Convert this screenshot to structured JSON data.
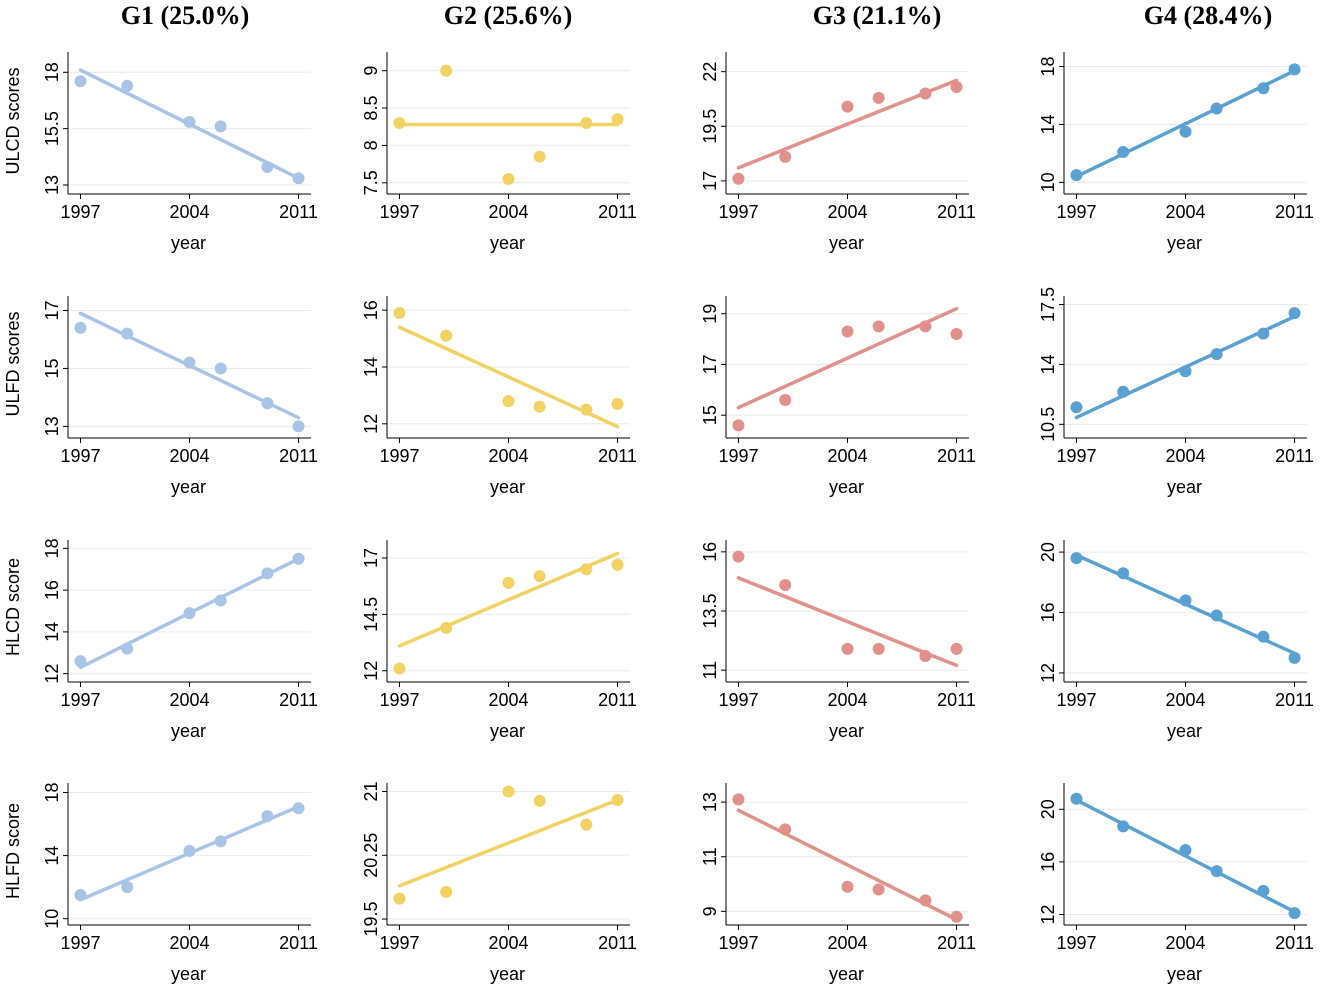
{
  "figure": {
    "column_titles": [
      "G1 (25.0%)",
      "G2 (25.6%)",
      "G3 (21.1%)",
      "G4 (28.4%)"
    ],
    "row_ylabels": [
      "ULCD scores",
      "ULFD scores",
      "HLCD score",
      "HLFD score"
    ]
  },
  "chart_data": [
    {
      "type": "scatter",
      "panel": "ULCD-G1",
      "group": "G1",
      "ylabel": "ULCD scores",
      "xlabel": "year",
      "color": "#a9c4e6",
      "x": [
        1997,
        2000,
        2004,
        2006,
        2009,
        2011
      ],
      "values": [
        17.6,
        17.4,
        15.8,
        15.6,
        13.8,
        13.3
      ],
      "fit": [
        [
          1997,
          18.1
        ],
        [
          2011,
          13.3
        ]
      ],
      "xlim": [
        1996.2,
        2011.8
      ],
      "ylim": [
        12.6,
        18.9
      ],
      "xticks": [
        1997,
        2004,
        2011
      ],
      "xtick_labels": [
        "1997",
        "2004",
        "2011"
      ],
      "yticks": [
        13,
        15.5,
        18
      ],
      "ytick_labels": [
        "13",
        "15.5",
        "18"
      ],
      "grid": true
    },
    {
      "type": "scatter",
      "panel": "ULCD-G2",
      "group": "G2",
      "ylabel": "",
      "xlabel": "year",
      "color": "#f2d262",
      "x": [
        1997,
        2000,
        2004,
        2006,
        2009,
        2011
      ],
      "values": [
        8.3,
        9.0,
        7.55,
        7.85,
        8.3,
        8.35
      ],
      "fit": [
        [
          1997,
          8.28
        ],
        [
          2011,
          8.28
        ]
      ],
      "xlim": [
        1996.2,
        2011.8
      ],
      "ylim": [
        7.35,
        9.25
      ],
      "xticks": [
        1997,
        2004,
        2011
      ],
      "xtick_labels": [
        "1997",
        "2004",
        "2011"
      ],
      "yticks": [
        7.5,
        8,
        8.5,
        9
      ],
      "ytick_labels": [
        "7.5",
        "8",
        "8.5",
        "9"
      ],
      "grid": true
    },
    {
      "type": "scatter",
      "panel": "ULCD-G3",
      "group": "G3",
      "ylabel": "",
      "xlabel": "year",
      "color": "#e1908c",
      "x": [
        1997,
        2000,
        2004,
        2006,
        2009,
        2011
      ],
      "values": [
        17.1,
        18.1,
        20.4,
        20.8,
        21.0,
        21.3
      ],
      "fit": [
        [
          1997,
          17.6
        ],
        [
          2011,
          21.6
        ]
      ],
      "xlim": [
        1996.2,
        2011.8
      ],
      "ylim": [
        16.4,
        22.9
      ],
      "xticks": [
        1997,
        2004,
        2011
      ],
      "xtick_labels": [
        "1997",
        "2004",
        "2011"
      ],
      "yticks": [
        17,
        19.5,
        22
      ],
      "ytick_labels": [
        "17",
        "19.5",
        "22"
      ],
      "grid": true
    },
    {
      "type": "scatter",
      "panel": "ULCD-G4",
      "group": "G4",
      "ylabel": "",
      "xlabel": "year",
      "color": "#5aa1d3",
      "x": [
        1997,
        2000,
        2004,
        2006,
        2009,
        2011
      ],
      "values": [
        10.5,
        12.1,
        13.5,
        15.1,
        16.5,
        17.8
      ],
      "fit": [
        [
          1997,
          10.4
        ],
        [
          2011,
          17.7
        ]
      ],
      "xlim": [
        1996.2,
        2011.8
      ],
      "ylim": [
        9.2,
        19.0
      ],
      "xticks": [
        1997,
        2004,
        2011
      ],
      "xtick_labels": [
        "1997",
        "2004",
        "2011"
      ],
      "yticks": [
        10,
        14,
        18
      ],
      "ytick_labels": [
        "10",
        "14",
        "18"
      ],
      "grid": true
    },
    {
      "type": "scatter",
      "panel": "ULFD-G1",
      "group": "G1",
      "ylabel": "ULFD scores",
      "xlabel": "year",
      "color": "#a9c4e6",
      "x": [
        1997,
        2000,
        2004,
        2006,
        2009,
        2011
      ],
      "values": [
        16.4,
        16.2,
        15.2,
        15.0,
        13.8,
        13.0
      ],
      "fit": [
        [
          1997,
          16.9
        ],
        [
          2011,
          13.3
        ]
      ],
      "xlim": [
        1996.2,
        2011.8
      ],
      "ylim": [
        12.6,
        17.5
      ],
      "xticks": [
        1997,
        2004,
        2011
      ],
      "xtick_labels": [
        "1997",
        "2004",
        "2011"
      ],
      "yticks": [
        13,
        15,
        17
      ],
      "ytick_labels": [
        "13",
        "15",
        "17"
      ],
      "grid": true
    },
    {
      "type": "scatter",
      "panel": "ULFD-G2",
      "group": "G2",
      "ylabel": "",
      "xlabel": "year",
      "color": "#f2d262",
      "x": [
        1997,
        2000,
        2004,
        2006,
        2009,
        2011
      ],
      "values": [
        15.9,
        15.1,
        12.8,
        12.6,
        12.5,
        12.7
      ],
      "fit": [
        [
          1997,
          15.4
        ],
        [
          2011,
          11.9
        ]
      ],
      "xlim": [
        1996.2,
        2011.8
      ],
      "ylim": [
        11.5,
        16.5
      ],
      "xticks": [
        1997,
        2004,
        2011
      ],
      "xtick_labels": [
        "1997",
        "2004",
        "2011"
      ],
      "yticks": [
        12,
        14,
        16
      ],
      "ytick_labels": [
        "12",
        "14",
        "16"
      ],
      "grid": true
    },
    {
      "type": "scatter",
      "panel": "ULFD-G3",
      "group": "G3",
      "ylabel": "",
      "xlabel": "year",
      "color": "#e1908c",
      "x": [
        1997,
        2000,
        2004,
        2006,
        2009,
        2011
      ],
      "values": [
        14.6,
        15.6,
        18.3,
        18.5,
        18.5,
        18.2
      ],
      "fit": [
        [
          1997,
          15.3
        ],
        [
          2011,
          19.2
        ]
      ],
      "xlim": [
        1996.2,
        2011.8
      ],
      "ylim": [
        14.1,
        19.7
      ],
      "xticks": [
        1997,
        2004,
        2011
      ],
      "xtick_labels": [
        "1997",
        "2004",
        "2011"
      ],
      "yticks": [
        15,
        17,
        19
      ],
      "ytick_labels": [
        "15",
        "17",
        "19"
      ],
      "grid": true
    },
    {
      "type": "scatter",
      "panel": "ULFD-G4",
      "group": "G4",
      "ylabel": "",
      "xlabel": "year",
      "color": "#5aa1d3",
      "x": [
        1997,
        2000,
        2004,
        2006,
        2009,
        2011
      ],
      "values": [
        11.5,
        12.4,
        13.6,
        14.6,
        15.8,
        17.0
      ],
      "fit": [
        [
          1997,
          10.9
        ],
        [
          2011,
          16.8
        ]
      ],
      "xlim": [
        1996.2,
        2011.8
      ],
      "ylim": [
        9.7,
        18.0
      ],
      "xticks": [
        1997,
        2004,
        2011
      ],
      "xtick_labels": [
        "1997",
        "2004",
        "2011"
      ],
      "yticks": [
        10.5,
        14,
        17.5
      ],
      "ytick_labels": [
        "10.5",
        "14",
        "17.5"
      ],
      "grid": true
    },
    {
      "type": "scatter",
      "panel": "HLCD-G1",
      "group": "G1",
      "ylabel": "HLCD score",
      "xlabel": "year",
      "color": "#a9c4e6",
      "x": [
        1997,
        2000,
        2004,
        2006,
        2009,
        2011
      ],
      "values": [
        12.6,
        13.2,
        14.9,
        15.5,
        16.8,
        17.5
      ],
      "fit": [
        [
          1997,
          12.3
        ],
        [
          2011,
          17.5
        ]
      ],
      "xlim": [
        1996.2,
        2011.8
      ],
      "ylim": [
        11.6,
        18.4
      ],
      "xticks": [
        1997,
        2004,
        2011
      ],
      "xtick_labels": [
        "1997",
        "2004",
        "2011"
      ],
      "yticks": [
        12,
        14,
        16,
        18
      ],
      "ytick_labels": [
        "12",
        "14",
        "16",
        "18"
      ],
      "grid": true
    },
    {
      "type": "scatter",
      "panel": "HLCD-G2",
      "group": "G2",
      "ylabel": "",
      "xlabel": "year",
      "color": "#f2d262",
      "x": [
        1997,
        2000,
        2004,
        2006,
        2009,
        2011
      ],
      "values": [
        12.1,
        13.9,
        15.9,
        16.2,
        16.5,
        16.7
      ],
      "fit": [
        [
          1997,
          13.1
        ],
        [
          2011,
          17.2
        ]
      ],
      "xlim": [
        1996.2,
        2011.8
      ],
      "ylim": [
        11.5,
        17.8
      ],
      "xticks": [
        1997,
        2004,
        2011
      ],
      "xtick_labels": [
        "1997",
        "2004",
        "2011"
      ],
      "yticks": [
        12,
        14.5,
        17
      ],
      "ytick_labels": [
        "12",
        "14.5",
        "17"
      ],
      "grid": true
    },
    {
      "type": "scatter",
      "panel": "HLCD-G3",
      "group": "G3",
      "ylabel": "",
      "xlabel": "year",
      "color": "#e1908c",
      "x": [
        1997,
        2000,
        2004,
        2006,
        2009,
        2011
      ],
      "values": [
        15.8,
        14.6,
        11.9,
        11.9,
        11.6,
        11.9
      ],
      "fit": [
        [
          1997,
          14.9
        ],
        [
          2011,
          11.2
        ]
      ],
      "xlim": [
        1996.2,
        2011.8
      ],
      "ylim": [
        10.5,
        16.5
      ],
      "xticks": [
        1997,
        2004,
        2011
      ],
      "xtick_labels": [
        "1997",
        "2004",
        "2011"
      ],
      "yticks": [
        11,
        13.5,
        16
      ],
      "ytick_labels": [
        "11",
        "13.5",
        "16"
      ],
      "grid": true
    },
    {
      "type": "scatter",
      "panel": "HLCD-G4",
      "group": "G4",
      "ylabel": "",
      "xlabel": "year",
      "color": "#5aa1d3",
      "x": [
        1997,
        2000,
        2004,
        2006,
        2009,
        2011
      ],
      "values": [
        19.6,
        18.6,
        16.8,
        15.8,
        14.4,
        13.0
      ],
      "fit": [
        [
          1997,
          19.8
        ],
        [
          2011,
          13.3
        ]
      ],
      "xlim": [
        1996.2,
        2011.8
      ],
      "ylim": [
        11.4,
        20.8
      ],
      "xticks": [
        1997,
        2004,
        2011
      ],
      "xtick_labels": [
        "1997",
        "2004",
        "2011"
      ],
      "yticks": [
        12,
        16,
        20
      ],
      "ytick_labels": [
        "12",
        "16",
        "20"
      ],
      "grid": true
    },
    {
      "type": "scatter",
      "panel": "HLFD-G1",
      "group": "G1",
      "ylabel": "HLFD score",
      "xlabel": "year",
      "color": "#a9c4e6",
      "x": [
        1997,
        2000,
        2004,
        2006,
        2009,
        2011
      ],
      "values": [
        11.5,
        12.0,
        14.3,
        14.9,
        16.5,
        17.0
      ],
      "fit": [
        [
          1997,
          11.2
        ],
        [
          2011,
          17.1
        ]
      ],
      "xlim": [
        1996.2,
        2011.8
      ],
      "ylim": [
        9.6,
        18.6
      ],
      "xticks": [
        1997,
        2004,
        2011
      ],
      "xtick_labels": [
        "1997",
        "2004",
        "2011"
      ],
      "yticks": [
        10,
        14,
        18
      ],
      "ytick_labels": [
        "10",
        "14",
        "18"
      ],
      "grid": true
    },
    {
      "type": "scatter",
      "panel": "HLFD-G2",
      "group": "G2",
      "ylabel": "",
      "xlabel": "year",
      "color": "#f2d262",
      "x": [
        1997,
        2000,
        2004,
        2006,
        2009,
        2011
      ],
      "values": [
        19.74,
        19.82,
        21.0,
        20.89,
        20.61,
        20.9
      ],
      "fit": [
        [
          1997,
          19.89
        ],
        [
          2011,
          20.9
        ]
      ],
      "xlim": [
        1996.2,
        2011.8
      ],
      "ylim": [
        19.43,
        21.1
      ],
      "xticks": [
        1997,
        2004,
        2011
      ],
      "xtick_labels": [
        "1997",
        "2004",
        "2011"
      ],
      "yticks": [
        19.5,
        20.25,
        21
      ],
      "ytick_labels": [
        "19.5",
        "20.25",
        "21"
      ],
      "grid": true
    },
    {
      "type": "scatter",
      "panel": "HLFD-G3",
      "group": "G3",
      "ylabel": "",
      "xlabel": "year",
      "color": "#e1908c",
      "x": [
        1997,
        2000,
        2004,
        2006,
        2009,
        2011
      ],
      "values": [
        13.1,
        12.0,
        9.9,
        9.8,
        9.4,
        8.8
      ],
      "fit": [
        [
          1997,
          12.7
        ],
        [
          2011,
          8.7
        ]
      ],
      "xlim": [
        1996.2,
        2011.8
      ],
      "ylim": [
        8.5,
        13.7
      ],
      "xticks": [
        1997,
        2004,
        2011
      ],
      "xtick_labels": [
        "1997",
        "2004",
        "2011"
      ],
      "yticks": [
        9,
        11,
        13
      ],
      "ytick_labels": [
        "9",
        "11",
        "13"
      ],
      "grid": true
    },
    {
      "type": "scatter",
      "panel": "HLFD-G4",
      "group": "G4",
      "ylabel": "",
      "xlabel": "year",
      "color": "#5aa1d3",
      "x": [
        1997,
        2000,
        2004,
        2006,
        2009,
        2011
      ],
      "values": [
        20.8,
        18.7,
        16.9,
        15.3,
        13.8,
        12.1
      ],
      "fit": [
        [
          1997,
          20.7
        ],
        [
          2011,
          12.2
        ]
      ],
      "xlim": [
        1996.2,
        2011.8
      ],
      "ylim": [
        11.2,
        22.0
      ],
      "xticks": [
        1997,
        2004,
        2011
      ],
      "xtick_labels": [
        "1997",
        "2004",
        "2011"
      ],
      "yticks": [
        12,
        16,
        20
      ],
      "ytick_labels": [
        "12",
        "16",
        "20"
      ],
      "grid": true
    }
  ]
}
